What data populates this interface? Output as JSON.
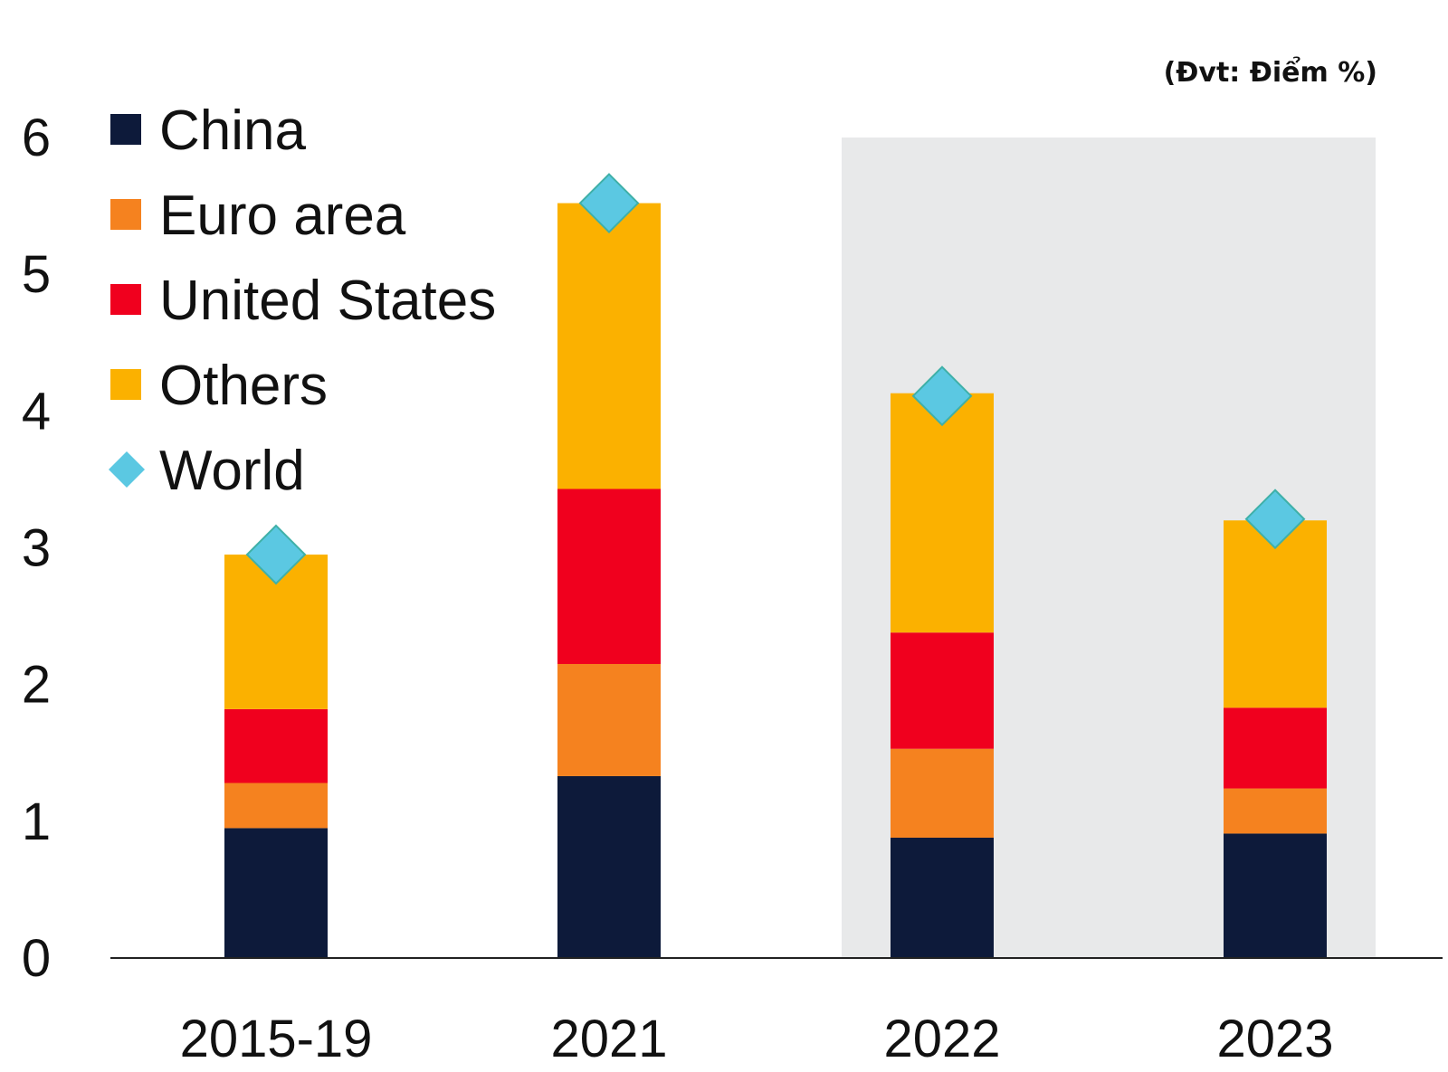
{
  "chart_data": {
    "type": "bar",
    "stacked": true,
    "unit_label": "(Đvt: Điểm %)",
    "categories": [
      "2015-19",
      "2021",
      "2022",
      "2023"
    ],
    "series": [
      {
        "name": "China",
        "color": "#0d1a3a",
        "values": [
          0.95,
          1.33,
          0.88,
          0.91
        ]
      },
      {
        "name": "Euro area",
        "color": "#f5821f",
        "values": [
          0.33,
          0.82,
          0.65,
          0.33
        ]
      },
      {
        "name": "United States",
        "color": "#f0001e",
        "values": [
          0.54,
          1.28,
          0.85,
          0.59
        ]
      },
      {
        "name": "Others",
        "color": "#fbb100",
        "values": [
          1.13,
          2.09,
          1.75,
          1.37
        ]
      }
    ],
    "world": {
      "name": "World",
      "color": "#5bc8e2",
      "values": [
        2.95,
        5.52,
        4.11,
        3.21
      ]
    },
    "ylim": [
      0,
      6
    ],
    "yticks": [
      "0",
      "1",
      "2",
      "3",
      "4",
      "5",
      "6"
    ],
    "shaded_categories": [
      "2022",
      "2023"
    ],
    "shade_color": "#e8e9ea",
    "legend_position": "top-left",
    "grid": false,
    "xlabel": "",
    "ylabel": ""
  }
}
